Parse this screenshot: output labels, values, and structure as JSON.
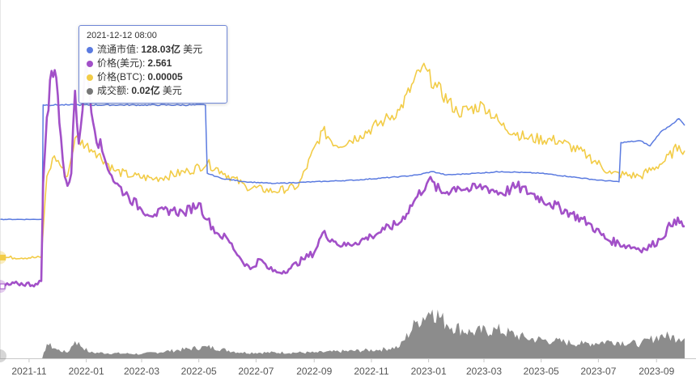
{
  "chart_data": {
    "type": "line",
    "x_ticks": [
      "2021-11",
      "2022-01",
      "2022-03",
      "2022-05",
      "2022-07",
      "2022-09",
      "2022-11",
      "2023-01",
      "2023-03",
      "2023-05",
      "2023-07",
      "2023-09"
    ],
    "x_range": [
      "2021-10-01",
      "2023-10-01"
    ],
    "grid": false,
    "series": [
      {
        "name": "流通市值",
        "color": "#5b7be0",
        "unit": "亿 美元",
        "points": [
          [
            "2021-10-01",
            61
          ],
          [
            "2021-11-15",
            61
          ],
          [
            "2021-11-16",
            128
          ],
          [
            "2021-12-12",
            128.03
          ],
          [
            "2022-03-01",
            128
          ],
          [
            "2022-05-08",
            128
          ],
          [
            "2022-05-10",
            88
          ],
          [
            "2022-05-25",
            85
          ],
          [
            "2022-06-20",
            83
          ],
          [
            "2022-07-20",
            82
          ],
          [
            "2022-09-01",
            83
          ],
          [
            "2022-10-15",
            84
          ],
          [
            "2022-12-01",
            86
          ],
          [
            "2022-12-20",
            87
          ],
          [
            "2023-01-05",
            89
          ],
          [
            "2023-01-20",
            87
          ],
          [
            "2023-02-20",
            88
          ],
          [
            "2023-03-20",
            89
          ],
          [
            "2023-05-01",
            88
          ],
          [
            "2023-06-01",
            86
          ],
          [
            "2023-07-01",
            84
          ],
          [
            "2023-07-23",
            83
          ],
          [
            "2023-07-25",
            106
          ],
          [
            "2023-08-15",
            107
          ],
          [
            "2023-08-25",
            104
          ],
          [
            "2023-09-05",
            112
          ],
          [
            "2023-09-18",
            117
          ],
          [
            "2023-09-25",
            120
          ],
          [
            "2023-10-01",
            116
          ]
        ]
      },
      {
        "name": "价格(美元)",
        "color": "#a250c8",
        "points": [
          [
            "2021-10-01",
            1.04
          ],
          [
            "2021-10-20",
            1.08
          ],
          [
            "2021-11-10",
            1.07
          ],
          [
            "2021-11-14",
            1.12
          ],
          [
            "2021-11-16",
            2.6
          ],
          [
            "2021-11-20",
            3.6
          ],
          [
            "2021-11-25",
            4.3
          ],
          [
            "2021-11-30",
            4.2
          ],
          [
            "2021-12-05",
            3.3
          ],
          [
            "2021-12-09",
            2.7
          ],
          [
            "2021-12-12",
            2.561
          ],
          [
            "2021-12-16",
            2.75
          ],
          [
            "2021-12-20",
            4.0
          ],
          [
            "2021-12-24",
            3.2
          ],
          [
            "2022-01-01",
            4.4
          ],
          [
            "2022-01-10",
            3.4
          ],
          [
            "2022-01-20",
            3.0
          ],
          [
            "2022-02-01",
            2.6
          ],
          [
            "2022-02-15",
            2.4
          ],
          [
            "2022-03-01",
            2.2
          ],
          [
            "2022-03-15",
            2.13
          ],
          [
            "2022-04-01",
            2.2
          ],
          [
            "2022-04-15",
            2.15
          ],
          [
            "2022-05-01",
            2.3
          ],
          [
            "2022-05-10",
            2.05
          ],
          [
            "2022-05-20",
            1.85
          ],
          [
            "2022-06-01",
            1.75
          ],
          [
            "2022-06-15",
            1.45
          ],
          [
            "2022-06-25",
            1.3
          ],
          [
            "2022-07-05",
            1.45
          ],
          [
            "2022-07-15",
            1.3
          ],
          [
            "2022-07-25",
            1.25
          ],
          [
            "2022-08-05",
            1.3
          ],
          [
            "2022-08-20",
            1.45
          ],
          [
            "2022-09-01",
            1.55
          ],
          [
            "2022-09-10",
            1.85
          ],
          [
            "2022-09-20",
            1.75
          ],
          [
            "2022-10-01",
            1.65
          ],
          [
            "2022-10-15",
            1.7
          ],
          [
            "2022-11-01",
            1.8
          ],
          [
            "2022-11-15",
            1.9
          ],
          [
            "2022-12-01",
            2.0
          ],
          [
            "2022-12-20",
            2.4
          ],
          [
            "2023-01-01",
            2.65
          ],
          [
            "2023-01-15",
            2.45
          ],
          [
            "2023-02-01",
            2.55
          ],
          [
            "2023-02-15",
            2.5
          ],
          [
            "2023-03-01",
            2.55
          ],
          [
            "2023-03-20",
            2.45
          ],
          [
            "2023-04-05",
            2.55
          ],
          [
            "2023-04-20",
            2.45
          ],
          [
            "2023-05-10",
            2.3
          ],
          [
            "2023-06-01",
            2.15
          ],
          [
            "2023-06-20",
            2.0
          ],
          [
            "2023-07-10",
            1.75
          ],
          [
            "2023-08-01",
            1.65
          ],
          [
            "2023-08-20",
            1.6
          ],
          [
            "2023-09-05",
            1.75
          ],
          [
            "2023-09-20",
            2.05
          ],
          [
            "2023-10-01",
            1.95
          ]
        ]
      },
      {
        "name": "价格(BTC)",
        "color": "#f2cc47",
        "points": [
          [
            "2021-10-01",
            1.8e-05
          ],
          [
            "2021-11-14",
            1.8e-05
          ],
          [
            "2021-11-20",
            5e-05
          ],
          [
            "2021-11-28",
            5.8e-05
          ],
          [
            "2021-12-12",
            5e-05
          ],
          [
            "2021-12-20",
            6.5e-05
          ],
          [
            "2022-01-10",
            6e-05
          ],
          [
            "2022-02-01",
            5.2e-05
          ],
          [
            "2022-02-20",
            5e-05
          ],
          [
            "2022-03-15",
            4.9e-05
          ],
          [
            "2022-04-20",
            5.2e-05
          ],
          [
            "2022-05-10",
            5.5e-05
          ],
          [
            "2022-05-25",
            5.2e-05
          ],
          [
            "2022-06-20",
            4.6e-05
          ],
          [
            "2022-07-20",
            4.4e-05
          ],
          [
            "2022-08-15",
            4.6e-05
          ],
          [
            "2022-09-10",
            6.8e-05
          ],
          [
            "2022-09-25",
            6.2e-05
          ],
          [
            "2022-10-20",
            6.6e-05
          ],
          [
            "2022-11-15",
            7.2e-05
          ],
          [
            "2022-12-01",
            7.6e-05
          ],
          [
            "2022-12-25",
            9.3e-05
          ],
          [
            "2023-01-10",
            8.5e-05
          ],
          [
            "2023-02-01",
            7.5e-05
          ],
          [
            "2023-03-01",
            7.8e-05
          ],
          [
            "2023-03-20",
            7e-05
          ],
          [
            "2023-04-15",
            6.5e-05
          ],
          [
            "2023-05-20",
            6.4e-05
          ],
          [
            "2023-06-20",
            5.8e-05
          ],
          [
            "2023-07-15",
            5.1e-05
          ],
          [
            "2023-08-15",
            5e-05
          ],
          [
            "2023-09-10",
            5.6e-05
          ],
          [
            "2023-09-25",
            6.2e-05
          ],
          [
            "2023-10-01",
            6e-05
          ]
        ]
      },
      {
        "name": "成交额",
        "color": "#777777",
        "unit": "亿 美元",
        "type": "area",
        "points": [
          [
            "2021-10-01",
            0.0
          ],
          [
            "2021-11-15",
            0.0
          ],
          [
            "2021-11-20",
            0.05
          ],
          [
            "2021-12-01",
            0.03
          ],
          [
            "2021-12-12",
            0.02
          ],
          [
            "2021-12-20",
            0.06
          ],
          [
            "2022-01-05",
            0.02
          ],
          [
            "2022-03-01",
            0.015
          ],
          [
            "2022-05-10",
            0.04
          ],
          [
            "2022-06-15",
            0.02
          ],
          [
            "2022-09-01",
            0.02
          ],
          [
            "2022-11-10",
            0.03
          ],
          [
            "2022-12-01",
            0.04
          ],
          [
            "2022-12-20",
            0.13
          ],
          [
            "2023-01-05",
            0.17
          ],
          [
            "2023-01-20",
            0.12
          ],
          [
            "2023-02-15",
            0.09
          ],
          [
            "2023-03-15",
            0.1
          ],
          [
            "2023-04-15",
            0.07
          ],
          [
            "2023-05-15",
            0.06
          ],
          [
            "2023-06-15",
            0.05
          ],
          [
            "2023-07-15",
            0.06
          ],
          [
            "2023-08-15",
            0.05
          ],
          [
            "2023-09-05",
            0.08
          ],
          [
            "2023-09-25",
            0.07
          ],
          [
            "2023-10-01",
            0.07
          ]
        ]
      }
    ]
  },
  "tooltip": {
    "title": "2021-12-12 08:00",
    "rows": [
      {
        "color": "#5b7be0",
        "label": "流通市值:",
        "value": "128.03亿",
        "unit": "美元"
      },
      {
        "color": "#a250c8",
        "label": "价格(美元):",
        "value": "2.561",
        "unit": ""
      },
      {
        "color": "#f2cc47",
        "label": "价格(BTC):",
        "value": "0.00005",
        "unit": ""
      },
      {
        "color": "#777777",
        "label": "成交额:",
        "value": "0.02亿",
        "unit": "美元"
      }
    ]
  },
  "cursor_date": "2021-12-12"
}
